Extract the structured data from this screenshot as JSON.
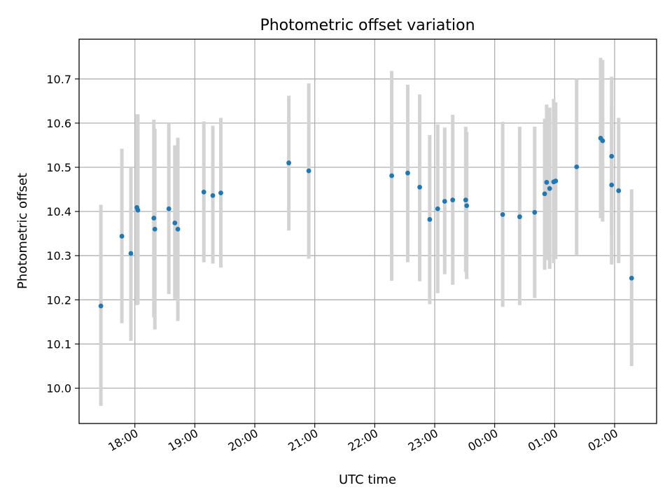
{
  "chart_data": {
    "type": "scatter",
    "title": "Photometric offset variation",
    "xlabel": "UTC time",
    "ylabel": "Photometric offset",
    "x_axis": "time",
    "x_ticks": [
      "18:00",
      "19:00",
      "20:00",
      "21:00",
      "22:00",
      "23:00",
      "00:00",
      "01:00",
      "02:00"
    ],
    "x_range_hours_after_1800": [
      -0.93,
      8.7
    ],
    "y_ticks": [
      "10.0",
      "10.1",
      "10.2",
      "10.3",
      "10.4",
      "10.5",
      "10.6",
      "10.7"
    ],
    "ylim": [
      9.92,
      10.79
    ],
    "grid": true,
    "point_color": "#1f77b4",
    "errorbar_color": "#d3d3d3",
    "series": [
      {
        "points": [
          {
            "t": "17:26",
            "y": 10.186,
            "lo": 9.96,
            "hi": 10.415
          },
          {
            "t": "17:47",
            "y": 10.344,
            "lo": 10.147,
            "hi": 10.542
          },
          {
            "t": "17:56",
            "y": 10.305,
            "lo": 10.107,
            "hi": 10.5
          },
          {
            "t": "18:02",
            "y": 10.409,
            "lo": 10.188,
            "hi": 10.62
          },
          {
            "t": "18:03",
            "y": 10.403,
            "lo": 10.19,
            "hi": 10.62
          },
          {
            "t": "18:19",
            "y": 10.385,
            "lo": 10.16,
            "hi": 10.608
          },
          {
            "t": "18:20",
            "y": 10.36,
            "lo": 10.133,
            "hi": 10.587
          },
          {
            "t": "18:34",
            "y": 10.406,
            "lo": 10.213,
            "hi": 10.6
          },
          {
            "t": "18:40",
            "y": 10.374,
            "lo": 10.2,
            "hi": 10.55
          },
          {
            "t": "18:43",
            "y": 10.36,
            "lo": 10.152,
            "hi": 10.567
          },
          {
            "t": "19:09",
            "y": 10.444,
            "lo": 10.285,
            "hi": 10.604
          },
          {
            "t": "19:18",
            "y": 10.436,
            "lo": 10.282,
            "hi": 10.594
          },
          {
            "t": "19:26",
            "y": 10.442,
            "lo": 10.273,
            "hi": 10.612
          },
          {
            "t": "20:34",
            "y": 10.51,
            "lo": 10.357,
            "hi": 10.662
          },
          {
            "t": "20:54",
            "y": 10.492,
            "lo": 10.293,
            "hi": 10.69
          },
          {
            "t": "22:17",
            "y": 10.481,
            "lo": 10.243,
            "hi": 10.718
          },
          {
            "t": "22:33",
            "y": 10.487,
            "lo": 10.285,
            "hi": 10.687
          },
          {
            "t": "22:45",
            "y": 10.455,
            "lo": 10.242,
            "hi": 10.665
          },
          {
            "t": "22:55",
            "y": 10.382,
            "lo": 10.19,
            "hi": 10.573
          },
          {
            "t": "23:03",
            "y": 10.406,
            "lo": 10.215,
            "hi": 10.597
          },
          {
            "t": "23:10",
            "y": 10.423,
            "lo": 10.258,
            "hi": 10.59
          },
          {
            "t": "23:18",
            "y": 10.426,
            "lo": 10.234,
            "hi": 10.619
          },
          {
            "t": "23:31",
            "y": 10.426,
            "lo": 10.263,
            "hi": 10.592
          },
          {
            "t": "23:32",
            "y": 10.413,
            "lo": 10.247,
            "hi": 10.58
          },
          {
            "t": "00:08",
            "y": 10.393,
            "lo": 10.184,
            "hi": 10.603
          },
          {
            "t": "00:25",
            "y": 10.388,
            "lo": 10.188,
            "hi": 10.592
          },
          {
            "t": "00:40",
            "y": 10.398,
            "lo": 10.204,
            "hi": 10.592
          },
          {
            "t": "00:50",
            "y": 10.44,
            "lo": 10.268,
            "hi": 10.61
          },
          {
            "t": "00:52",
            "y": 10.466,
            "lo": 10.29,
            "hi": 10.642
          },
          {
            "t": "00:55",
            "y": 10.452,
            "lo": 10.27,
            "hi": 10.635
          },
          {
            "t": "00:59",
            "y": 10.467,
            "lo": 10.283,
            "hi": 10.655
          },
          {
            "t": "01:01",
            "y": 10.469,
            "lo": 10.292,
            "hi": 10.647
          },
          {
            "t": "01:22",
            "y": 10.501,
            "lo": 10.302,
            "hi": 10.7
          },
          {
            "t": "01:46",
            "y": 10.566,
            "lo": 10.385,
            "hi": 10.748
          },
          {
            "t": "01:48",
            "y": 10.56,
            "lo": 10.377,
            "hi": 10.743
          },
          {
            "t": "01:57",
            "y": 10.525,
            "lo": 10.345,
            "hi": 10.705
          },
          {
            "t": "01:57",
            "y": 10.46,
            "lo": 10.28,
            "hi": 10.64
          },
          {
            "t": "02:04",
            "y": 10.447,
            "lo": 10.283,
            "hi": 10.612
          },
          {
            "t": "02:17",
            "y": 10.249,
            "lo": 10.05,
            "hi": 10.45
          }
        ]
      }
    ]
  }
}
